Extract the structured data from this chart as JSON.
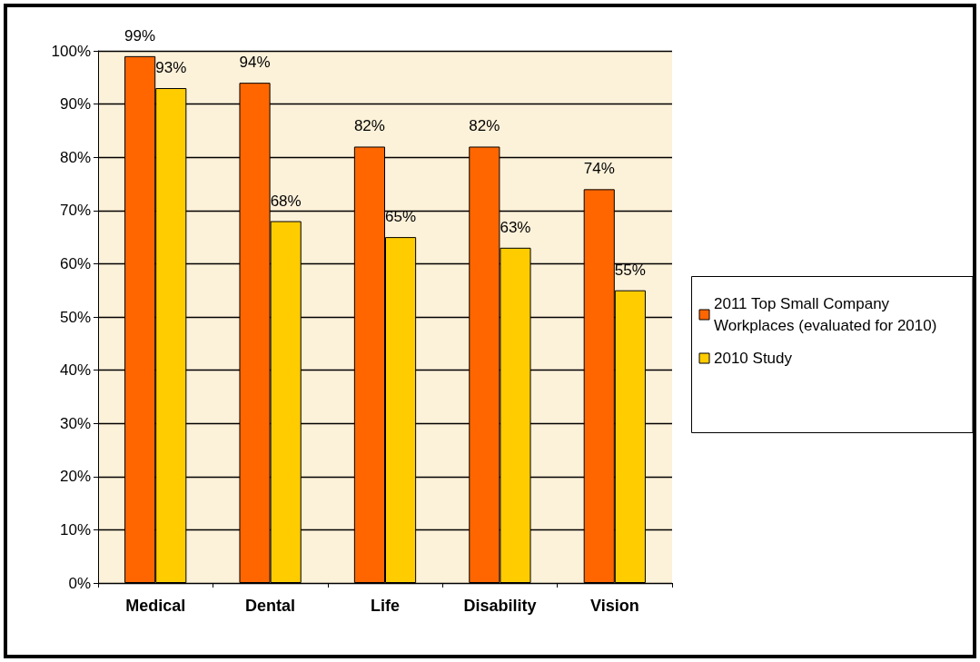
{
  "chart_data": {
    "type": "bar",
    "categories": [
      "Medical",
      "Dental",
      "Life",
      "Disability",
      "Vision"
    ],
    "series": [
      {
        "name": "2011 Top Small Company Workplaces (evaluated for 2010)",
        "color": "#ff6600",
        "values": [
          99,
          94,
          82,
          82,
          74
        ],
        "value_labels": [
          "99%",
          "94%",
          "82%",
          "82%",
          "74%"
        ]
      },
      {
        "name": "2010 Study",
        "color": "#ffcc00",
        "values": [
          93,
          68,
          65,
          63,
          55
        ],
        "value_labels": [
          "93%",
          "68%",
          "65%",
          "63%",
          "55%"
        ]
      }
    ],
    "ylim": [
      0,
      100
    ],
    "yticks": [
      {
        "value": 0,
        "label": "0%"
      },
      {
        "value": 10,
        "label": "10%"
      },
      {
        "value": 20,
        "label": "20%"
      },
      {
        "value": 30,
        "label": "30%"
      },
      {
        "value": 40,
        "label": "40%"
      },
      {
        "value": 50,
        "label": "50%"
      },
      {
        "value": 60,
        "label": "60%"
      },
      {
        "value": 70,
        "label": "70%"
      },
      {
        "value": 80,
        "label": "80%"
      },
      {
        "value": 90,
        "label": "90%"
      },
      {
        "value": 100,
        "label": "100%"
      }
    ],
    "grid": "y",
    "legend": "right"
  }
}
